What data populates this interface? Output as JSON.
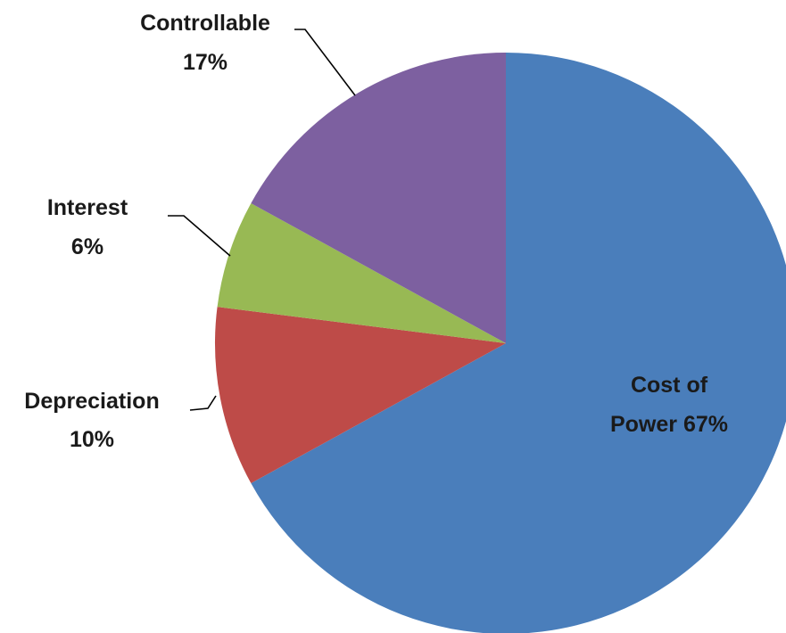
{
  "chart_data": {
    "type": "pie",
    "title": "",
    "start_angle_deg": 0,
    "direction": "clockwise",
    "slices": [
      {
        "name": "Cost of Power",
        "value": 67,
        "percent_label": "67%",
        "line1": "Cost of",
        "line2": "Power 67%",
        "color": "#4a7ebb",
        "label_inside": true
      },
      {
        "name": "Depreciation",
        "value": 10,
        "percent_label": "10%",
        "line1": "Depreciation",
        "line2": "10%",
        "color": "#be4b48",
        "label_inside": false
      },
      {
        "name": "Interest",
        "value": 6,
        "percent_label": "6%",
        "line1": "Interest",
        "line2": "6%",
        "color": "#98b954",
        "label_inside": false
      },
      {
        "name": "Controllable",
        "value": 17,
        "percent_label": "17%",
        "line1": "Controllable",
        "line2": "17%",
        "color": "#7d60a0",
        "label_inside": false
      }
    ],
    "legend": "none"
  }
}
